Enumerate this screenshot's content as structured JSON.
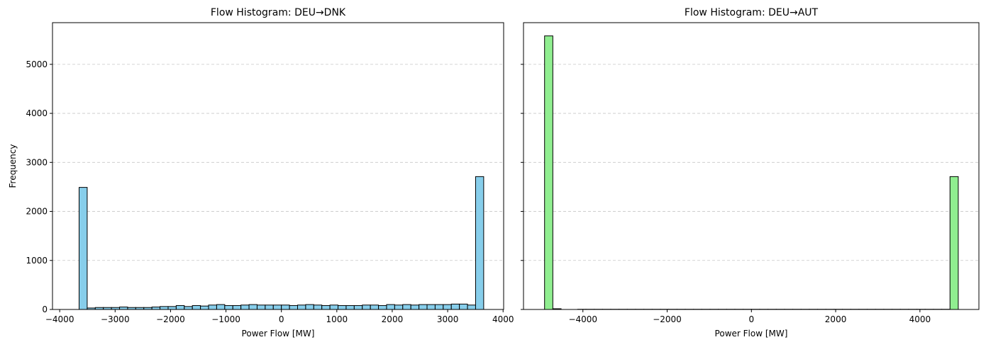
{
  "chart_data": [
    {
      "type": "bar",
      "title": "Flow Histogram: DEU→DNK",
      "xlabel": "Power Flow [MW]",
      "ylabel": "Frequency",
      "bar_color": "#87ceeb",
      "edge_color": "#000000",
      "xlim": [
        -4130,
        4010
      ],
      "ylim": [
        0,
        5850
      ],
      "grid": "y-dashed",
      "xticks": [
        -4000,
        -3000,
        -2000,
        -1000,
        0,
        1000,
        2000,
        3000,
        4000
      ],
      "xtick_labels": [
        "−4000",
        "−3000",
        "−2000",
        "−1000",
        "0",
        "1000",
        "2000",
        "3000",
        "4000"
      ],
      "yticks": [
        0,
        1000,
        2000,
        3000,
        4000,
        5000
      ],
      "ytick_labels": [
        "0",
        "1000",
        "2000",
        "3000",
        "4000",
        "5000"
      ],
      "bin_range": [
        -3650,
        3650
      ],
      "values": [
        2490,
        30,
        40,
        40,
        40,
        50,
        40,
        40,
        40,
        50,
        60,
        60,
        80,
        60,
        80,
        70,
        90,
        100,
        80,
        80,
        90,
        100,
        90,
        90,
        90,
        90,
        80,
        90,
        100,
        90,
        80,
        90,
        80,
        80,
        80,
        90,
        90,
        80,
        100,
        90,
        100,
        90,
        100,
        100,
        100,
        100,
        110,
        110,
        90,
        2710
      ]
    },
    {
      "type": "bar",
      "title": "Flow Histogram: DEU→AUT",
      "xlabel": "Power Flow [MW]",
      "ylabel": "",
      "bar_color": "#90ee90",
      "edge_color": "#000000",
      "xlim": [
        -5410,
        5400
      ],
      "ylim": [
        0,
        5850
      ],
      "grid": "y-dashed",
      "xticks": [
        -4000,
        -2000,
        0,
        2000,
        4000
      ],
      "xtick_labels": [
        "−4000",
        "−2000",
        "0",
        "2000",
        "4000"
      ],
      "yticks": [
        0,
        1000,
        2000,
        3000,
        4000,
        5000
      ],
      "ytick_labels": [
        "",
        "",
        "",
        "",
        "",
        ""
      ],
      "bin_range": [
        -4910,
        4910
      ],
      "values": [
        5580,
        15,
        0,
        0,
        4,
        4,
        4,
        4,
        4,
        4,
        4,
        4,
        4,
        4,
        4,
        4,
        4,
        4,
        4,
        4,
        4,
        4,
        4,
        4,
        4,
        4,
        4,
        4,
        4,
        4,
        4,
        4,
        4,
        4,
        4,
        4,
        4,
        4,
        4,
        4,
        4,
        4,
        4,
        4,
        4,
        4,
        4,
        4,
        4,
        2710
      ]
    }
  ]
}
